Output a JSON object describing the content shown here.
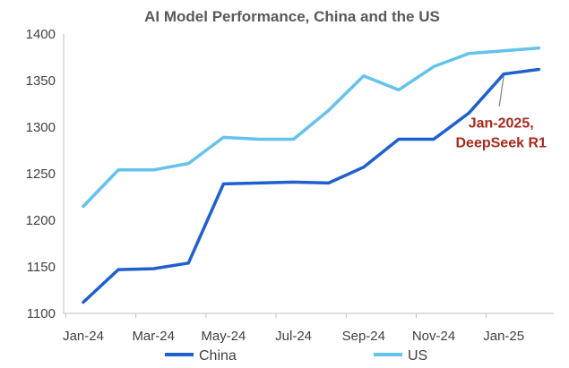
{
  "chart_data": {
    "type": "line",
    "title": "AI Model Performance, China and the US",
    "xlabel": "",
    "ylabel": "",
    "ylim": [
      1100,
      1400
    ],
    "yticks": [
      1100,
      1150,
      1200,
      1250,
      1300,
      1350,
      1400
    ],
    "x": [
      "Jan-24",
      "Feb-24",
      "Mar-24",
      "Apr-24",
      "May-24",
      "Jun-24",
      "Jul-24",
      "Aug-24",
      "Sep-24",
      "Oct-24",
      "Nov-24",
      "Dec-24",
      "Jan-25",
      "Feb-25"
    ],
    "xtick_labels": [
      "Jan-24",
      "Mar-24",
      "May-24",
      "Jul-24",
      "Sep-24",
      "Nov-24",
      "Jan-25"
    ],
    "series": [
      {
        "name": "China",
        "color": "#1f5fd0",
        "values": [
          1112,
          1147,
          1148,
          1154,
          1239,
          1240,
          1241,
          1240,
          1257,
          1287,
          1287,
          1315,
          1357,
          1362
        ]
      },
      {
        "name": "US",
        "color": "#63c3ec",
        "values": [
          1215,
          1254,
          1254,
          1261,
          1289,
          1287,
          1287,
          1318,
          1355,
          1340,
          1365,
          1379,
          1382,
          1385
        ]
      }
    ],
    "annotation": {
      "line1": "Jan-2025,",
      "line2": "DeepSeek R1",
      "series": "China",
      "index": 12,
      "color": "#a52a1a"
    },
    "legend": "bottom",
    "grid": false
  }
}
